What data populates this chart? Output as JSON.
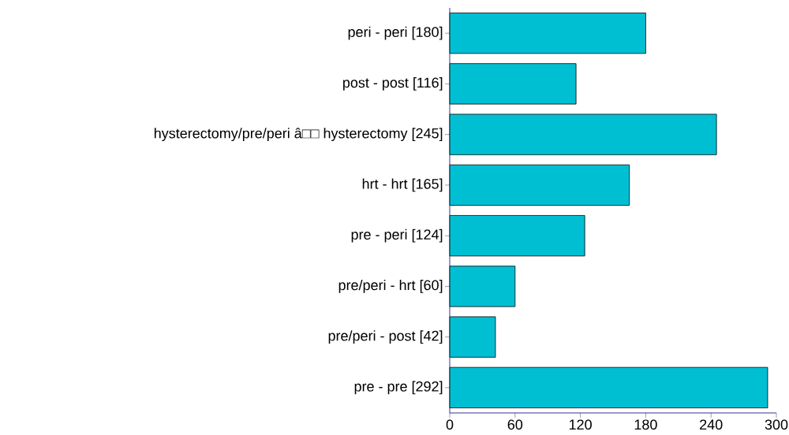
{
  "chart_data": {
    "type": "bar",
    "orientation": "horizontal",
    "categories": [
      "peri - peri [180]",
      "post - post [116]",
      "hysterectomy/pre/peri â□□ hysterectomy  [245]",
      "hrt - hrt [165]",
      "pre - peri [124]",
      "pre/peri - hrt [60]",
      "pre/peri - post [42]",
      "pre - pre [292]"
    ],
    "values": [
      180,
      116,
      245,
      165,
      124,
      60,
      42,
      292
    ],
    "color": "#00bfd3",
    "xlim": [
      0,
      300
    ],
    "xticks": [
      0,
      60,
      120,
      180,
      240,
      300
    ]
  }
}
